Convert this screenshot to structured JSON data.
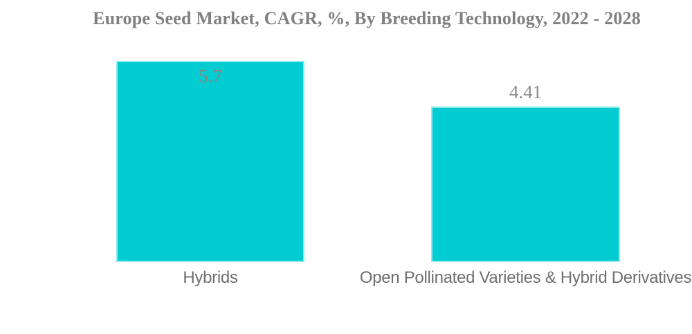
{
  "title": "Europe Seed Market, CAGR, %, By Breeding Technology, 2022 - 2028",
  "colors": {
    "background": "#ffffff",
    "bar_fill": "#00ccd2",
    "bar_edge": "#8feaec",
    "title_text": "#808080",
    "value_inside_text": "#93807d",
    "value_outside_text": "#8c8c8c",
    "category_text": "#6f6f6f"
  },
  "chart_data": {
    "type": "bar",
    "title": "Europe Seed Market, CAGR, %, By Breeding Technology, 2022 - 2028",
    "categories": [
      "Hybrids",
      "Open Pollinated Varieties & Hybrid Derivatives"
    ],
    "values": [
      5.7,
      4.41
    ],
    "xlabel": "",
    "ylabel": "",
    "ylim": [
      0,
      5.7
    ],
    "grid": false,
    "legend": false,
    "axes_visible": false,
    "bar_color": "#00ccd2",
    "value_label_positions": [
      "inside",
      "above"
    ]
  },
  "bars": [
    {
      "label": "Hybrids",
      "value_label": "5.7"
    },
    {
      "label": "Open Pollinated Varieties & Hybrid Derivatives",
      "value_label": "4.41"
    }
  ]
}
